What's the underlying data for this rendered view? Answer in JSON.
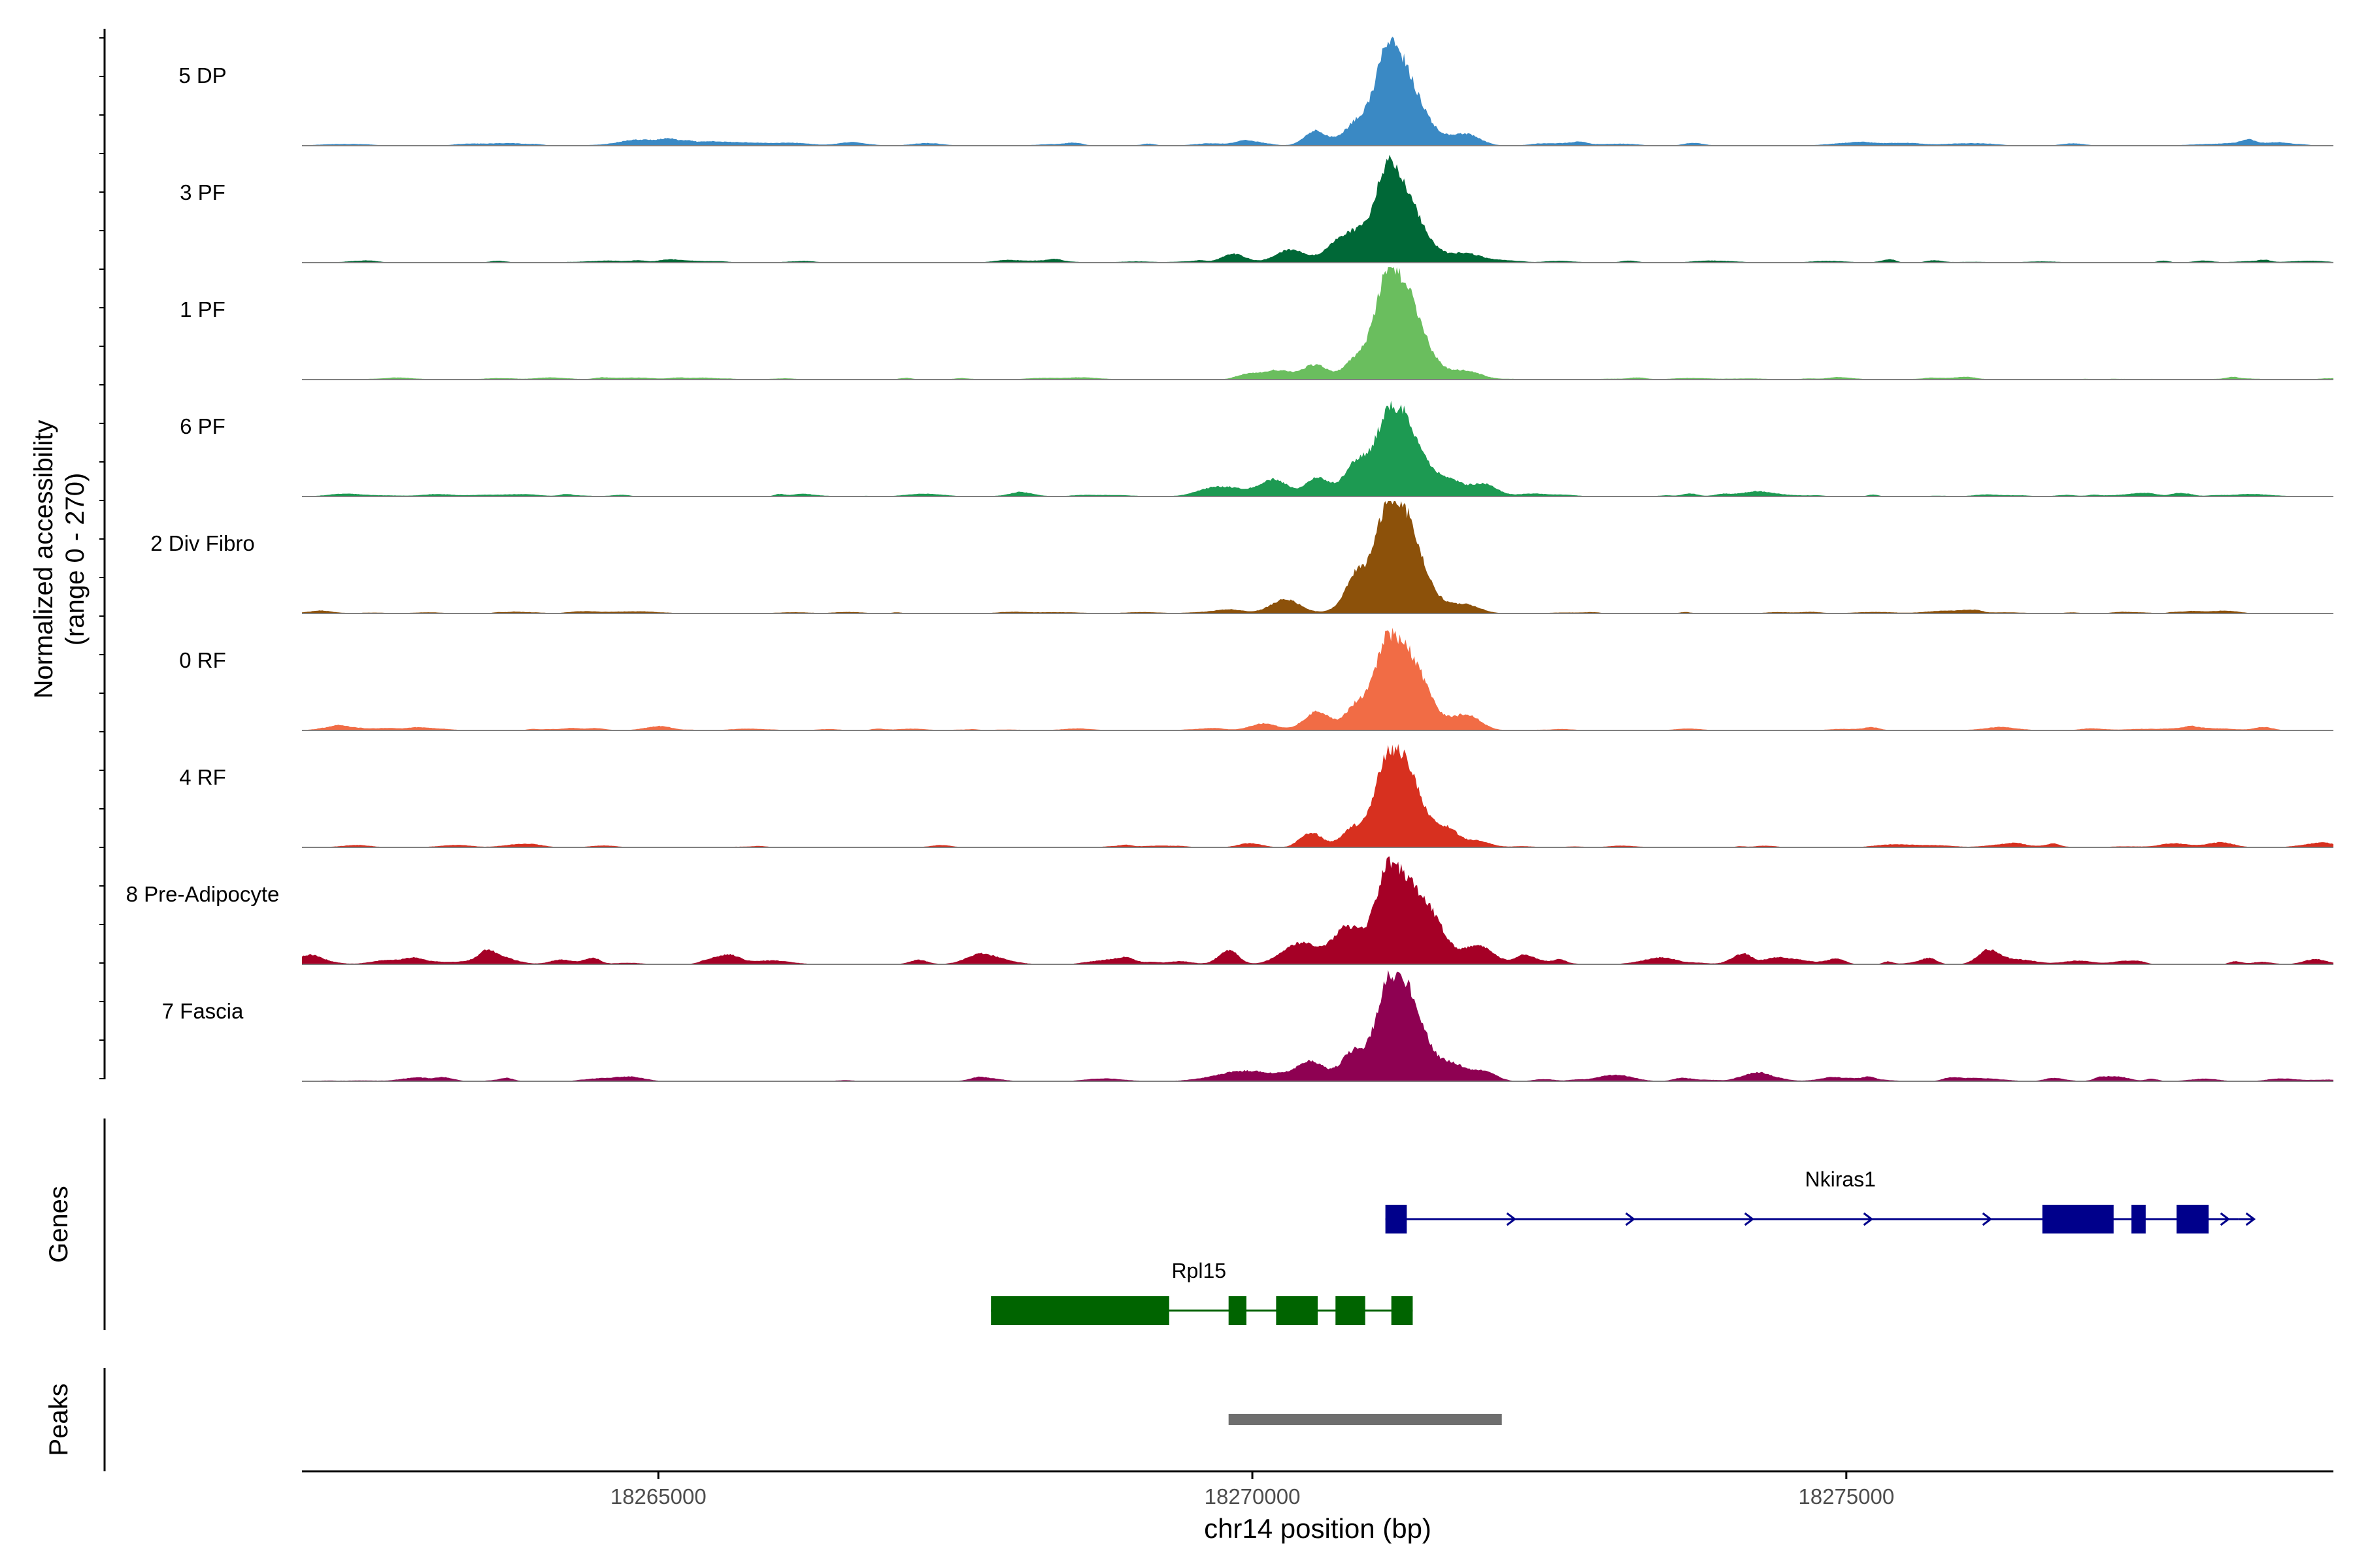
{
  "chart_data": {
    "type": "area",
    "title": "",
    "ylabel_line1": "Normalized accessibility",
    "ylabel_line2": "(range 0 - 270)",
    "ylim": [
      0,
      270
    ],
    "xlabel": "chr14 position (bp)",
    "xlim": [
      18262000,
      18279100
    ],
    "xticks": [
      18265000,
      18270000,
      18275000
    ],
    "xtick_labels": [
      "18265000",
      "18270000",
      "18275000"
    ],
    "genes_label": "Genes",
    "peaks_label": "Peaks",
    "tracks": [
      {
        "name": "5 DP",
        "color": "#3A89C4",
        "main_peak": 245,
        "noise": 6,
        "minor_peaks": [
          [
            18269940,
            12,
            80
          ],
          [
            18270530,
            30,
            90
          ],
          [
            18270880,
            55,
            100
          ],
          [
            18271800,
            20,
            120
          ],
          [
            18264900,
            6,
            300
          ],
          [
            18265700,
            8,
            250
          ]
        ]
      },
      {
        "name": "3 PF",
        "color": "#006837",
        "main_peak": 225,
        "noise": 5,
        "minor_peaks": [
          [
            18269860,
            12,
            90
          ],
          [
            18270300,
            25,
            120
          ],
          [
            18270700,
            30,
            90
          ],
          [
            18270870,
            55,
            100
          ],
          [
            18271800,
            15,
            120
          ],
          [
            18270950,
            12,
            350
          ]
        ]
      },
      {
        "name": "1 PF",
        "color": "#6ABE5E",
        "main_peak": 255,
        "noise": 4,
        "minor_peaks": [
          [
            18269950,
            12,
            90
          ],
          [
            18270200,
            22,
            120
          ],
          [
            18270530,
            35,
            110
          ],
          [
            18270880,
            50,
            100
          ],
          [
            18271350,
            30,
            120
          ],
          [
            18271800,
            20,
            130
          ]
        ]
      },
      {
        "name": "6 PF",
        "color": "#1D9A52",
        "main_peak": 190,
        "noise": 7,
        "minor_peaks": [
          [
            18269800,
            12,
            150
          ],
          [
            18270180,
            40,
            120
          ],
          [
            18270550,
            45,
            100
          ],
          [
            18270880,
            80,
            100
          ],
          [
            18271300,
            45,
            120
          ],
          [
            18271650,
            35,
            120
          ],
          [
            18271950,
            30,
            110
          ]
        ]
      },
      {
        "name": "2 Div Fibro",
        "color": "#8C510A",
        "main_peak": 250,
        "noise": 4,
        "minor_peaks": [
          [
            18269800,
            10,
            120
          ],
          [
            18270280,
            30,
            120
          ],
          [
            18270880,
            90,
            100
          ],
          [
            18271320,
            50,
            120
          ],
          [
            18271800,
            20,
            120
          ]
        ]
      },
      {
        "name": "0 RF",
        "color": "#F16C45",
        "main_peak": 225,
        "noise": 5,
        "minor_peaks": [
          [
            18270100,
            15,
            120
          ],
          [
            18270550,
            45,
            100
          ],
          [
            18270880,
            60,
            100
          ],
          [
            18271400,
            40,
            120
          ],
          [
            18271800,
            35,
            120
          ]
        ]
      },
      {
        "name": "4 RF",
        "color": "#D7301F",
        "main_peak": 220,
        "noise": 5,
        "minor_peaks": [
          [
            18269980,
            10,
            100
          ],
          [
            18270500,
            35,
            90
          ],
          [
            18270850,
            45,
            100
          ],
          [
            18271320,
            35,
            110
          ],
          [
            18271650,
            35,
            90
          ],
          [
            18271900,
            15,
            100
          ]
        ]
      },
      {
        "name": "8 Pre-Adipocyte",
        "color": "#A50026",
        "main_peak": 240,
        "noise": 12,
        "minor_peaks": [
          [
            18263600,
            20,
            150
          ],
          [
            18265600,
            22,
            90
          ],
          [
            18269800,
            35,
            80
          ],
          [
            18270400,
            50,
            150
          ],
          [
            18270800,
            90,
            120
          ],
          [
            18271500,
            75,
            140
          ],
          [
            18271900,
            45,
            110
          ],
          [
            18272300,
            15,
            80
          ],
          [
            18274400,
            12,
            80
          ],
          [
            18275700,
            12,
            60
          ]
        ]
      },
      {
        "name": "7 Fascia",
        "color": "#8E0152",
        "main_peak": 235,
        "noise": 8,
        "minor_peaks": [
          [
            18269950,
            25,
            250
          ],
          [
            18270500,
            45,
            120
          ],
          [
            18270850,
            70,
            100
          ],
          [
            18271350,
            55,
            130
          ],
          [
            18271700,
            35,
            100
          ],
          [
            18271950,
            25,
            100
          ]
        ]
      }
    ],
    "genes": [
      {
        "name": "Nkiras1",
        "strand": "+",
        "color": "#00008B",
        "start": 18271120,
        "end": 18278300,
        "exons": [
          [
            18271120,
            18271300
          ],
          [
            18276650,
            18277250
          ],
          [
            18277400,
            18277520
          ],
          [
            18277780,
            18278050
          ]
        ]
      },
      {
        "name": "Rpl15",
        "strand": "-",
        "color": "#006400",
        "start": 18267800,
        "end": 18271350,
        "exons": [
          [
            18267800,
            18269300
          ],
          [
            18269800,
            18269950
          ],
          [
            18270200,
            18270550
          ],
          [
            18270700,
            18270950
          ],
          [
            18271170,
            18271350
          ]
        ]
      }
    ],
    "peaks": [
      {
        "start": 18269800,
        "end": 18272100,
        "color": "#6E6E6E"
      }
    ]
  }
}
